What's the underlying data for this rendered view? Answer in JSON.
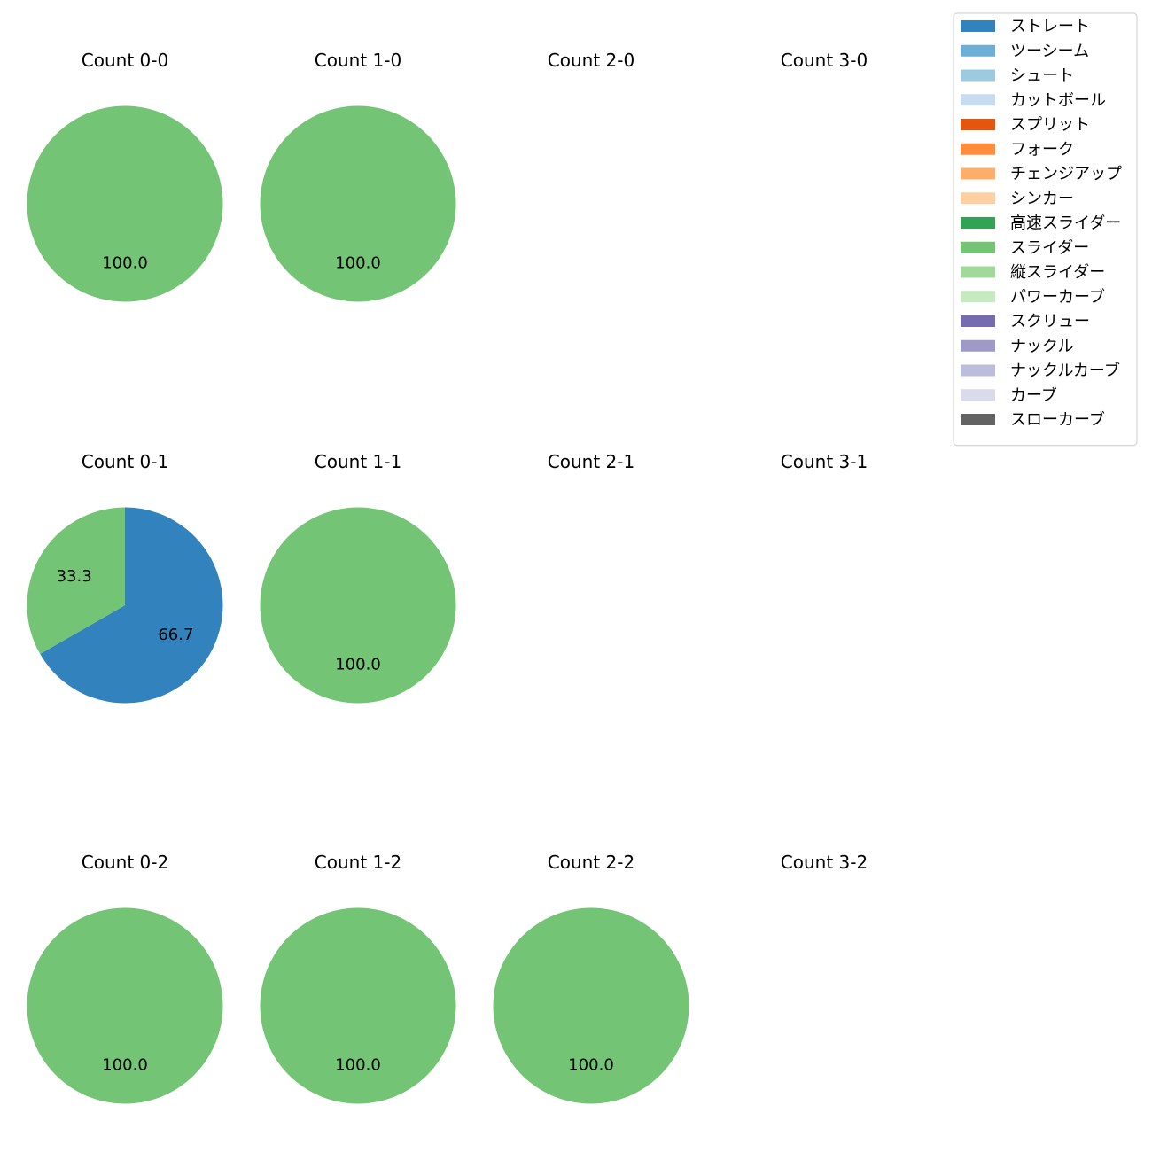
{
  "chart_data": {
    "type": "pie",
    "title": "",
    "legend": {
      "placement": "top-right",
      "entries": [
        {
          "label": "ストレート",
          "color": "#3182bd"
        },
        {
          "label": "ツーシーム",
          "color": "#6baed6"
        },
        {
          "label": "シュート",
          "color": "#9ecae1"
        },
        {
          "label": "カットボール",
          "color": "#c6dbef"
        },
        {
          "label": "スプリット",
          "color": "#e6550d"
        },
        {
          "label": "フォーク",
          "color": "#fd8d3c"
        },
        {
          "label": "チェンジアップ",
          "color": "#fdae6b"
        },
        {
          "label": "シンカー",
          "color": "#fdd0a2"
        },
        {
          "label": "高速スライダー",
          "color": "#31a354"
        },
        {
          "label": "スライダー",
          "color": "#74c476"
        },
        {
          "label": "縦スライダー",
          "color": "#a1d99b"
        },
        {
          "label": "パワーカーブ",
          "color": "#c7e9c0"
        },
        {
          "label": "スクリュー",
          "color": "#756bb1"
        },
        {
          "label": "ナックル",
          "color": "#9e9ac8"
        },
        {
          "label": "ナックルカーブ",
          "color": "#bcbddc"
        },
        {
          "label": "カーブ",
          "color": "#dadaeb"
        },
        {
          "label": "スローカーブ",
          "color": "#636363"
        }
      ]
    },
    "subplots": [
      {
        "title": "Count 0-0",
        "slices": [
          {
            "label": "スライダー",
            "value": 100.0
          }
        ]
      },
      {
        "title": "Count 1-0",
        "slices": [
          {
            "label": "スライダー",
            "value": 100.0
          }
        ]
      },
      {
        "title": "Count 2-0",
        "slices": []
      },
      {
        "title": "Count 3-0",
        "slices": []
      },
      {
        "title": "Count 0-1",
        "slices": [
          {
            "label": "ストレート",
            "value": 66.7
          },
          {
            "label": "スライダー",
            "value": 33.3
          }
        ]
      },
      {
        "title": "Count 1-1",
        "slices": [
          {
            "label": "スライダー",
            "value": 100.0
          }
        ]
      },
      {
        "title": "Count 2-1",
        "slices": []
      },
      {
        "title": "Count 3-1",
        "slices": []
      },
      {
        "title": "Count 0-2",
        "slices": [
          {
            "label": "スライダー",
            "value": 100.0
          }
        ]
      },
      {
        "title": "Count 1-2",
        "slices": [
          {
            "label": "スライダー",
            "value": 100.0
          }
        ]
      },
      {
        "title": "Count 2-2",
        "slices": [
          {
            "label": "スライダー",
            "value": 100.0
          }
        ]
      },
      {
        "title": "Count 3-2",
        "slices": []
      }
    ]
  }
}
